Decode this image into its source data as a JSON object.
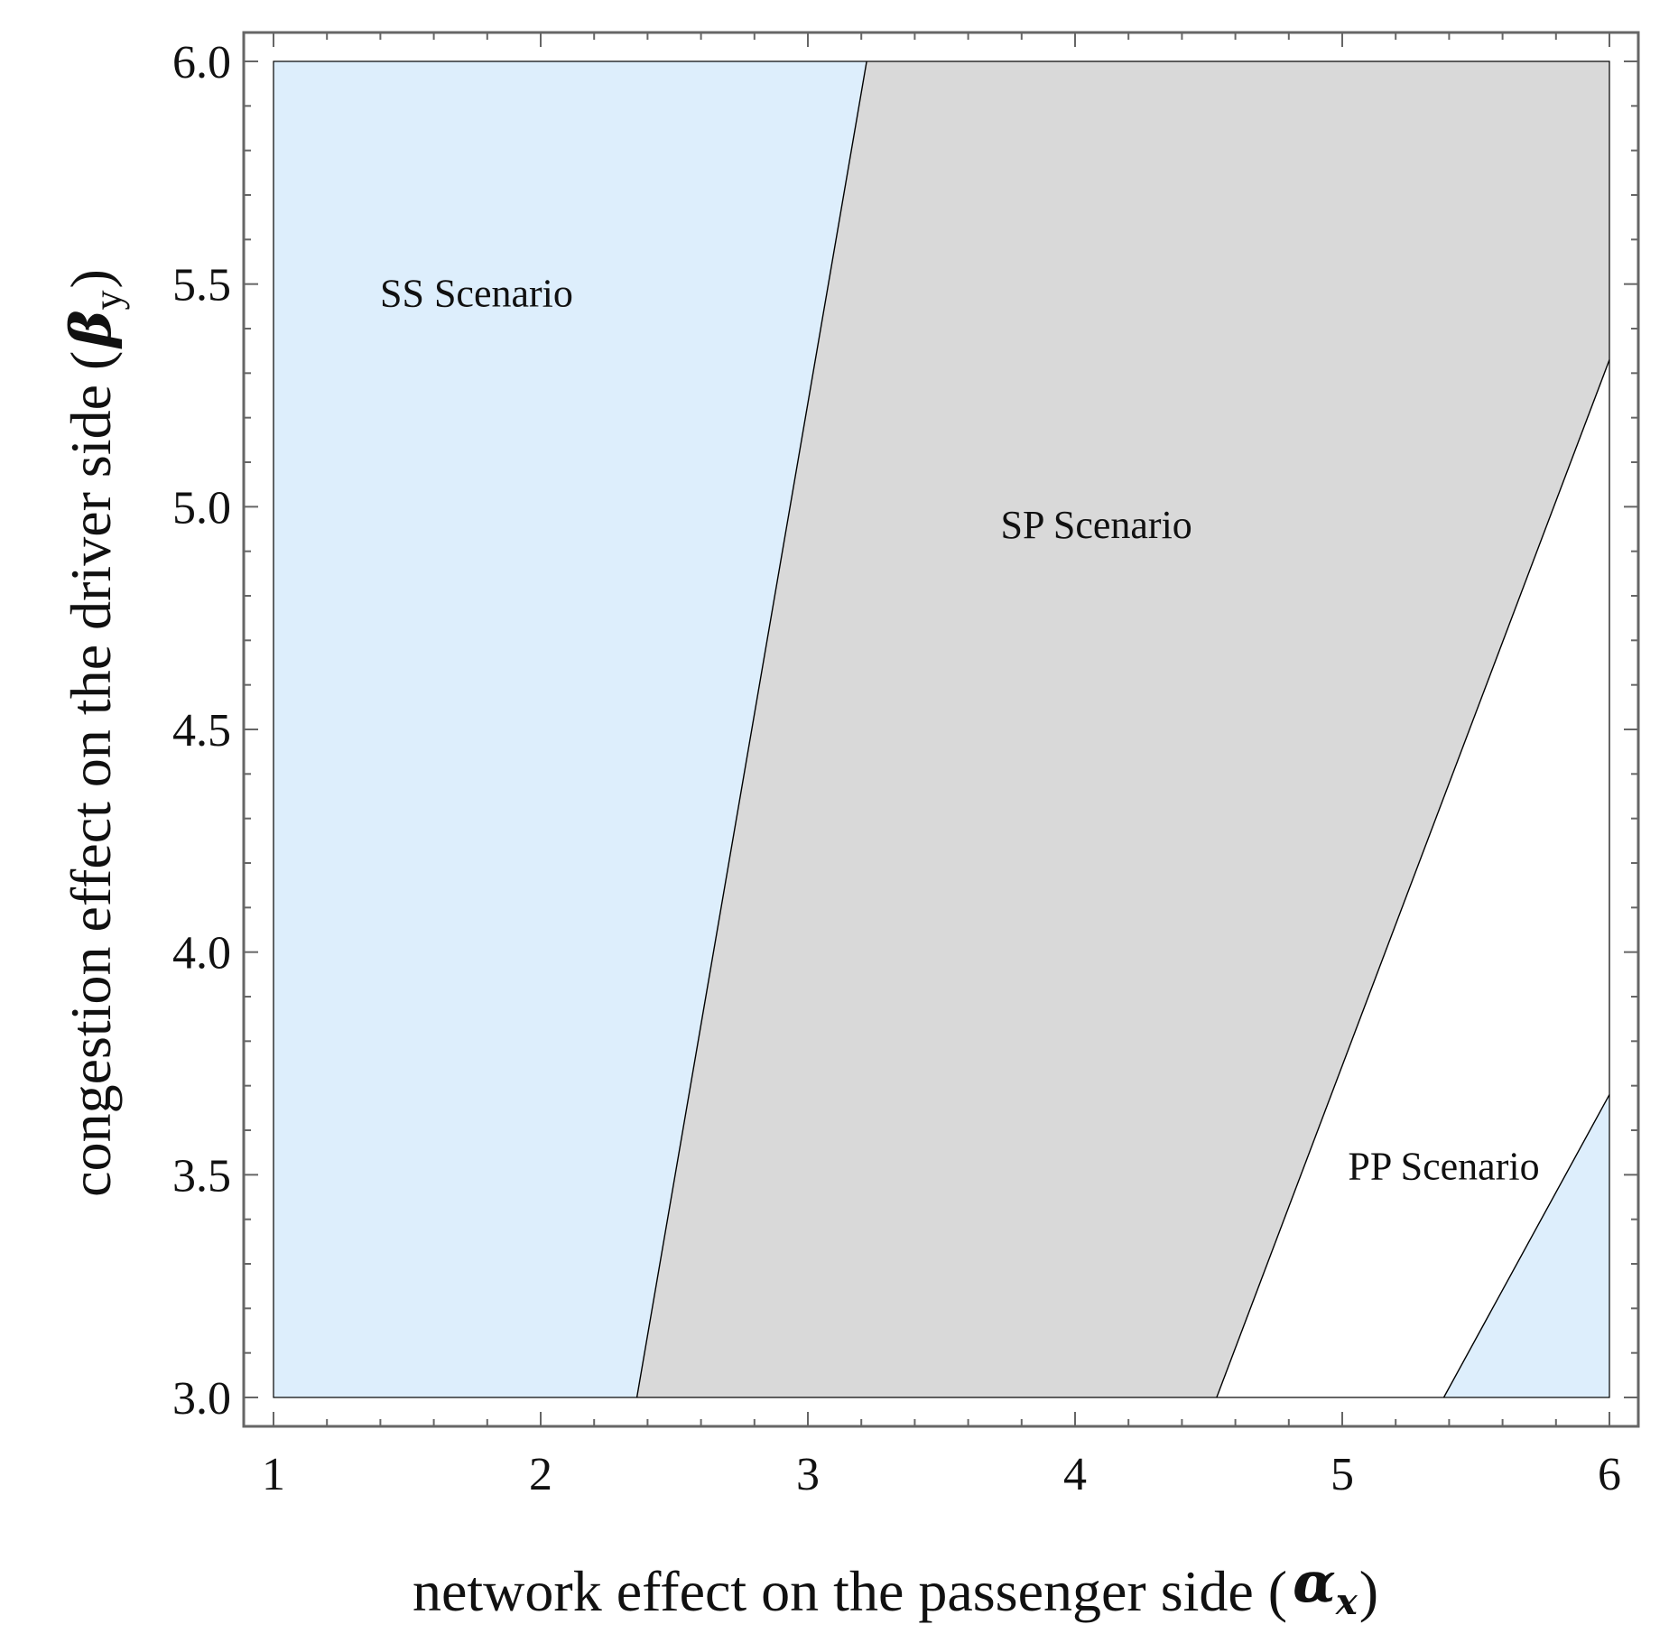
{
  "chart_data": {
    "type": "region-plot",
    "title": "",
    "xlabel": {
      "text": "network effect on the passenger side (",
      "symbol": "α",
      "subscript": "x",
      "close": ")"
    },
    "ylabel": {
      "text": "congestion effect on the driver side (",
      "symbol": "β",
      "subscript": "y",
      "close": ")"
    },
    "xlim": [
      1,
      6
    ],
    "ylim": [
      3,
      6
    ],
    "x_ticks": [
      1,
      2,
      3,
      4,
      5,
      6
    ],
    "x_tick_labels": [
      "1",
      "2",
      "3",
      "4",
      "5",
      "6"
    ],
    "y_ticks": [
      3.0,
      3.5,
      4.0,
      4.5,
      5.0,
      5.5,
      6.0
    ],
    "y_tick_labels": [
      "3.0",
      "3.5",
      "4.0",
      "4.5",
      "5.0",
      "5.5",
      "6.0"
    ],
    "x_minor_step": 0.2,
    "y_minor_step": 0.1,
    "boundaries": [
      {
        "name": "SS-SP",
        "from": [
          2.36,
          3.0
        ],
        "to": [
          3.22,
          6.0
        ]
      },
      {
        "name": "SP-PP",
        "from": [
          4.53,
          3.0
        ],
        "to": [
          6.0,
          5.33
        ]
      },
      {
        "name": "PP-edge",
        "from": [
          5.38,
          3.0
        ],
        "to": [
          6.0,
          3.68
        ]
      }
    ],
    "regions": [
      {
        "name": "SS Scenario",
        "color": "#ddeefc",
        "polygon": [
          [
            1,
            3
          ],
          [
            2.36,
            3
          ],
          [
            3.22,
            6
          ],
          [
            1,
            6
          ]
        ]
      },
      {
        "name": "SP Scenario",
        "color": "#d9d9d9",
        "polygon": [
          [
            2.36,
            3
          ],
          [
            4.53,
            3
          ],
          [
            6,
            5.33
          ],
          [
            6,
            6
          ],
          [
            3.22,
            6
          ]
        ]
      },
      {
        "name": "PP Scenario",
        "color": "#ffffff",
        "polygon": [
          [
            4.53,
            3
          ],
          [
            5.38,
            3
          ],
          [
            6,
            3.68
          ],
          [
            6,
            5.33
          ]
        ]
      },
      {
        "name": "",
        "color": "#ddeefc",
        "polygon": [
          [
            5.38,
            3
          ],
          [
            6,
            3
          ],
          [
            6,
            3.68
          ]
        ]
      }
    ],
    "annotations": [
      {
        "text": "SS Scenario",
        "x": 1.76,
        "y": 5.48
      },
      {
        "text": "SP Scenario",
        "x": 4.08,
        "y": 4.96
      },
      {
        "text": "PP Scenario",
        "x": 5.38,
        "y": 3.52
      }
    ],
    "grid": false,
    "frame_color": "#666666",
    "boundary_color": "#000000"
  }
}
